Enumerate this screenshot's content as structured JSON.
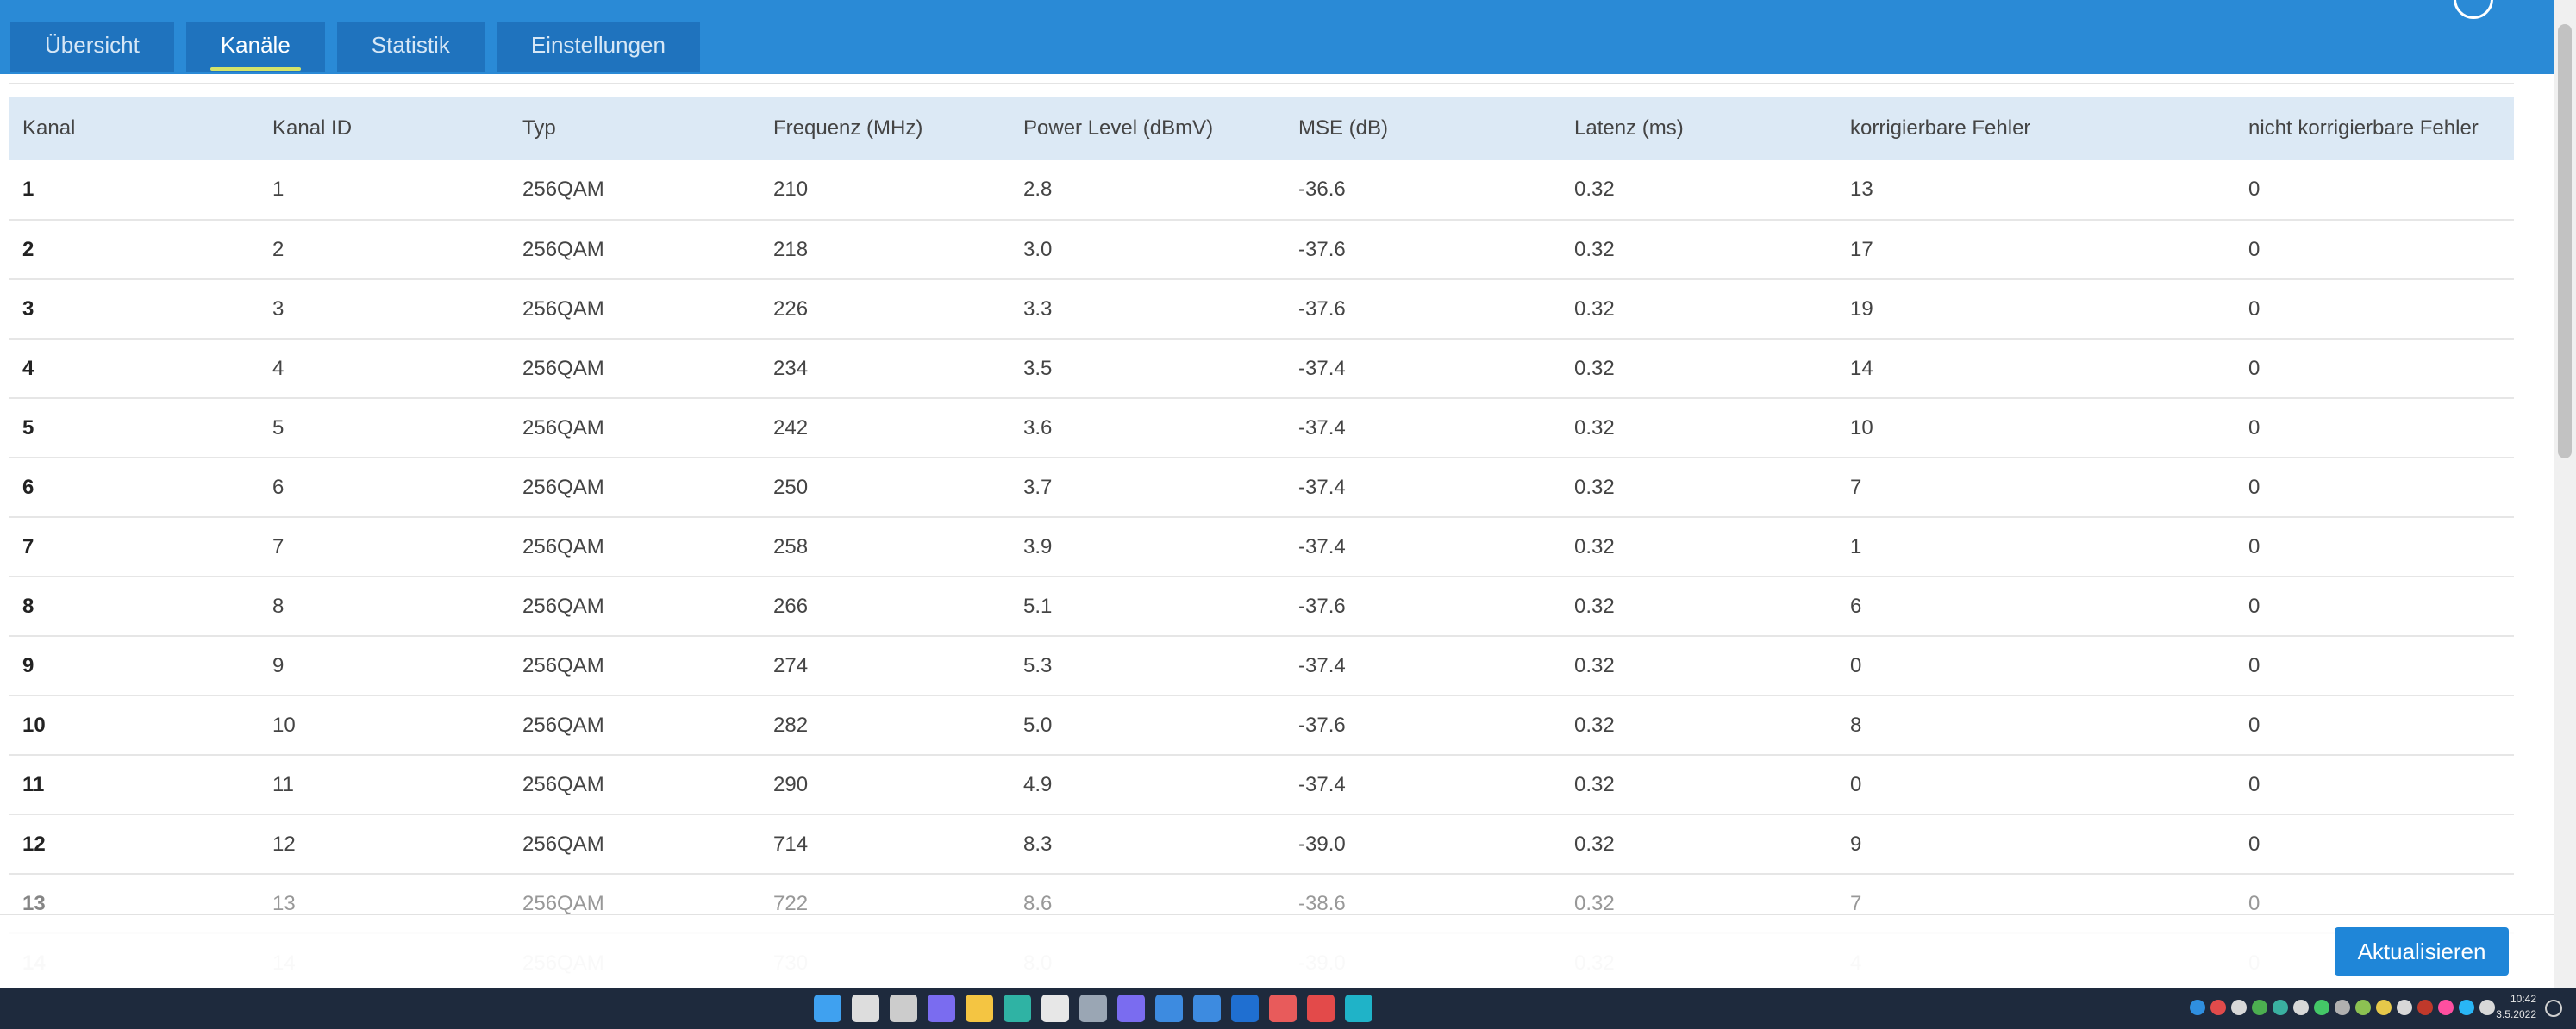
{
  "tabs": [
    {
      "label": "Übersicht"
    },
    {
      "label": "Kanäle"
    },
    {
      "label": "Statistik"
    },
    {
      "label": "Einstellungen"
    }
  ],
  "active_tab": "Kanäle",
  "table": {
    "headers": [
      "Kanal",
      "Kanal ID",
      "Typ",
      "Frequenz (MHz)",
      "Power Level (dBmV)",
      "MSE (dB)",
      "Latenz (ms)",
      "korrigierbare Fehler",
      "nicht korrigierbare Fehler"
    ],
    "rows": [
      [
        "1",
        "1",
        "256QAM",
        "210",
        "2.8",
        "-36.6",
        "0.32",
        "13",
        "0"
      ],
      [
        "2",
        "2",
        "256QAM",
        "218",
        "3.0",
        "-37.6",
        "0.32",
        "17",
        "0"
      ],
      [
        "3",
        "3",
        "256QAM",
        "226",
        "3.3",
        "-37.6",
        "0.32",
        "19",
        "0"
      ],
      [
        "4",
        "4",
        "256QAM",
        "234",
        "3.5",
        "-37.4",
        "0.32",
        "14",
        "0"
      ],
      [
        "5",
        "5",
        "256QAM",
        "242",
        "3.6",
        "-37.4",
        "0.32",
        "10",
        "0"
      ],
      [
        "6",
        "6",
        "256QAM",
        "250",
        "3.7",
        "-37.4",
        "0.32",
        "7",
        "0"
      ],
      [
        "7",
        "7",
        "256QAM",
        "258",
        "3.9",
        "-37.4",
        "0.32",
        "1",
        "0"
      ],
      [
        "8",
        "8",
        "256QAM",
        "266",
        "5.1",
        "-37.6",
        "0.32",
        "6",
        "0"
      ],
      [
        "9",
        "9",
        "256QAM",
        "274",
        "5.3",
        "-37.4",
        "0.32",
        "0",
        "0"
      ],
      [
        "10",
        "10",
        "256QAM",
        "282",
        "5.0",
        "-37.6",
        "0.32",
        "8",
        "0"
      ],
      [
        "11",
        "11",
        "256QAM",
        "290",
        "4.9",
        "-37.4",
        "0.32",
        "0",
        "0"
      ],
      [
        "12",
        "12",
        "256QAM",
        "714",
        "8.3",
        "-39.0",
        "0.32",
        "9",
        "0"
      ],
      [
        "13",
        "13",
        "256QAM",
        "722",
        "8.6",
        "-38.6",
        "0.32",
        "7",
        "0"
      ],
      [
        "14",
        "14",
        "256QAM",
        "730",
        "8.0",
        "-39.0",
        "0.32",
        "4",
        "0"
      ]
    ]
  },
  "footer": {
    "refresh_label": "Aktualisieren"
  },
  "taskbar": {
    "clock_time": "10:42",
    "clock_date": "3.5.2022",
    "colors": {
      "primary": "#2a8ad6",
      "tab_bg": "#1f73be",
      "accent_underline": "#d4e36a",
      "button": "#1f86d8",
      "taskbar_bg": "#1e2a3d"
    },
    "pinned_icons": [
      {
        "name": "windows-start-icon",
        "color": "#3fa1f0"
      },
      {
        "name": "search-icon",
        "color": "#dddddd"
      },
      {
        "name": "task-view-icon",
        "color": "#cccccc"
      },
      {
        "name": "chat-icon",
        "color": "#7a6cf0"
      },
      {
        "name": "file-explorer-icon",
        "color": "#f4c542"
      },
      {
        "name": "edge-icon",
        "color": "#2fb3a4"
      },
      {
        "name": "store-icon",
        "color": "#e7e7e7"
      },
      {
        "name": "settings-icon",
        "color": "#9aa6b4"
      },
      {
        "name": "save-app-icon",
        "color": "#7a6cf0"
      },
      {
        "name": "mail-icon",
        "color": "#3d8be0"
      },
      {
        "name": "mail-badge-icon",
        "color": "#3d8be0"
      },
      {
        "name": "outlook-icon",
        "color": "#1f6fd1"
      },
      {
        "name": "game-icon",
        "color": "#e85b5b"
      },
      {
        "name": "active-app-icon",
        "color": "#e34a4a"
      },
      {
        "name": "app-q-icon",
        "color": "#1fb3c8"
      }
    ],
    "tray_icons": [
      {
        "name": "tray-app-blue-icon",
        "color": "#2f8fe0"
      },
      {
        "name": "tray-app-red-icon",
        "color": "#e14b4b"
      },
      {
        "name": "onedrive-icon",
        "color": "#d8d8d8"
      },
      {
        "name": "tray-app-green-icon",
        "color": "#4caf50"
      },
      {
        "name": "tray-app-teal-icon",
        "color": "#3ab0a0"
      },
      {
        "name": "wifi-icon",
        "color": "#d8d8d8"
      },
      {
        "name": "tray-app-green2-icon",
        "color": "#44c767"
      },
      {
        "name": "tray-app-gray-icon",
        "color": "#b0b0b0"
      },
      {
        "name": "tray-app-lime-icon",
        "color": "#8cc152"
      },
      {
        "name": "tray-app-yellow-icon",
        "color": "#e6c84a"
      },
      {
        "name": "network-icon",
        "color": "#d8d8d8"
      },
      {
        "name": "tray-app-darkred-icon",
        "color": "#c0392b"
      },
      {
        "name": "tray-app-pink-icon",
        "color": "#ff4fa0"
      },
      {
        "name": "tray-app-cyan-icon",
        "color": "#29b6f6"
      },
      {
        "name": "volume-icon",
        "color": "#d8d8d8"
      }
    ]
  }
}
